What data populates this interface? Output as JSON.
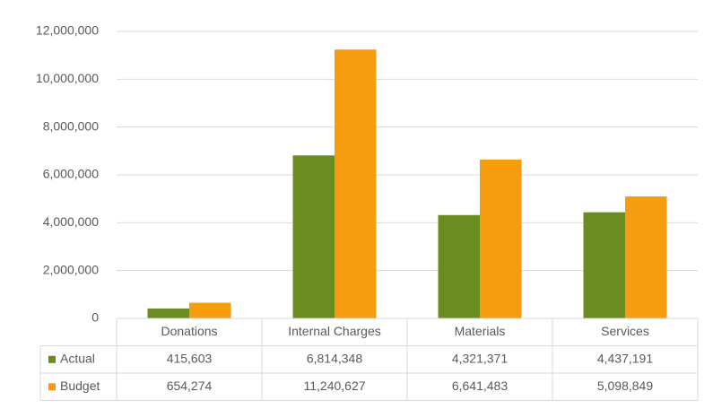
{
  "chart_data": {
    "type": "bar",
    "categories": [
      "Donations",
      "Internal Charges",
      "Materials",
      "Services"
    ],
    "series": [
      {
        "name": "Actual",
        "color": "#6b8c21",
        "values": [
          415603,
          6814348,
          4321371,
          4437191
        ],
        "value_labels": [
          "415,603",
          "6,814,348",
          "4,321,371",
          "4,437,191"
        ]
      },
      {
        "name": "Budget",
        "color": "#f59d0e",
        "values": [
          654274,
          11240627,
          6641483,
          5098849
        ],
        "value_labels": [
          "654,274",
          "11,240,627",
          "6,641,483",
          "5,098,849"
        ]
      }
    ],
    "ylim": [
      0,
      12000000
    ],
    "yticks": [
      0,
      {
        "value": 2000000,
        "label": "2,000,000"
      },
      {
        "value": 4000000,
        "label": "4,000,000"
      },
      {
        "value": 6000000,
        "label": "6,000,000"
      },
      {
        "value": 8000000,
        "label": "8,000,000"
      },
      {
        "value": 10000000,
        "label": "10,000,000"
      },
      {
        "value": 12000000,
        "label": "12,000,000"
      }
    ],
    "grid": true
  }
}
